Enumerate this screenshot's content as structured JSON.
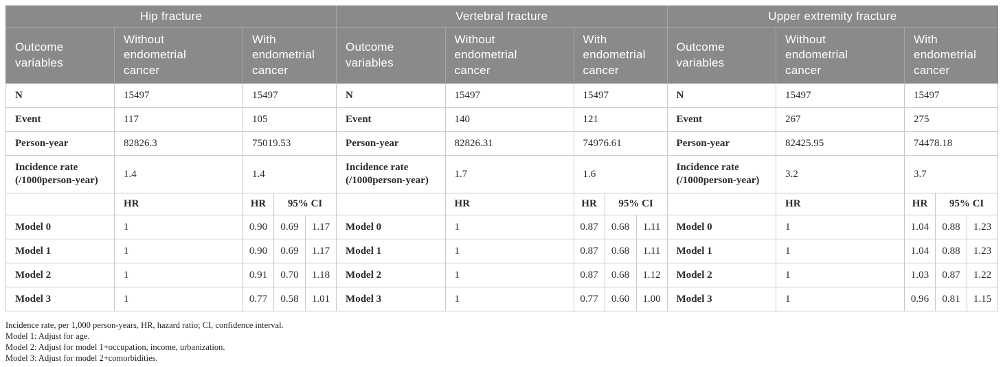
{
  "table": {
    "sections": [
      {
        "title": "Hip fracture",
        "columns": {
          "outcome": "Outcome variables",
          "without": "Without endometrial cancer",
          "with": "With endometrial cancer"
        },
        "stats": [
          {
            "label": "N",
            "without": "15497",
            "with": "15497"
          },
          {
            "label": "Event",
            "without": "117",
            "with": "105"
          },
          {
            "label": "Person-year",
            "without": "82826.3",
            "with": "75019.53"
          },
          {
            "label": "Incidence rate (/1000person-year)",
            "without": "1.4",
            "with": "1.4"
          }
        ],
        "hr_header": {
          "without": "HR",
          "hr": "HR",
          "ci": "95% CI"
        },
        "models": [
          {
            "label": "Model 0",
            "ref": "1",
            "hr": "0.90",
            "ci_low": "0.69",
            "ci_high": "1.17"
          },
          {
            "label": "Model 1",
            "ref": "1",
            "hr": "0.90",
            "ci_low": "0.69",
            "ci_high": "1.17"
          },
          {
            "label": "Model 2",
            "ref": "1",
            "hr": "0.91",
            "ci_low": "0.70",
            "ci_high": "1.18"
          },
          {
            "label": "Model 3",
            "ref": "1",
            "hr": "0.77",
            "ci_low": "0.58",
            "ci_high": "1.01"
          }
        ]
      },
      {
        "title": "Vertebral fracture",
        "columns": {
          "outcome": "Outcome variables",
          "without": "Without endometrial cancer",
          "with": "With endometrial cancer"
        },
        "stats": [
          {
            "label": "N",
            "without": "15497",
            "with": "15497"
          },
          {
            "label": "Event",
            "without": "140",
            "with": "121"
          },
          {
            "label": "Person-year",
            "without": "82826.31",
            "with": "74976.61"
          },
          {
            "label": "Incidence rate (/1000person-year)",
            "without": "1.7",
            "with": "1.6"
          }
        ],
        "hr_header": {
          "without": "HR",
          "hr": "HR",
          "ci": "95% CI"
        },
        "models": [
          {
            "label": "Model 0",
            "ref": "1",
            "hr": "0.87",
            "ci_low": "0.68",
            "ci_high": "1.11"
          },
          {
            "label": "Model 1",
            "ref": "1",
            "hr": "0.87",
            "ci_low": "0.68",
            "ci_high": "1.11"
          },
          {
            "label": "Model 2",
            "ref": "1",
            "hr": "0.87",
            "ci_low": "0.68",
            "ci_high": "1.12"
          },
          {
            "label": "Model 3",
            "ref": "1",
            "hr": "0.77",
            "ci_low": "0.60",
            "ci_high": "1.00"
          }
        ]
      },
      {
        "title": "Upper extremity fracture",
        "columns": {
          "outcome": "Outcome variables",
          "without": "Without endometrial cancer",
          "with": "With endometrial cancer"
        },
        "stats": [
          {
            "label": "N",
            "without": "15497",
            "with": "15497"
          },
          {
            "label": "Event",
            "without": "267",
            "with": "275"
          },
          {
            "label": "Person-year",
            "without": "82425.95",
            "with": "74478.18"
          },
          {
            "label": "Incidence rate (/1000person-year)",
            "without": "3.2",
            "with": "3.7"
          }
        ],
        "hr_header": {
          "without": "HR",
          "hr": "HR",
          "ci": "95% CI"
        },
        "models": [
          {
            "label": "Model 0",
            "ref": "1",
            "hr": "1.04",
            "ci_low": "0.88",
            "ci_high": "1.23"
          },
          {
            "label": "Model 1",
            "ref": "1",
            "hr": "1.04",
            "ci_low": "0.88",
            "ci_high": "1.23"
          },
          {
            "label": "Model 2",
            "ref": "1",
            "hr": "1.03",
            "ci_low": "0.87",
            "ci_high": "1.22"
          },
          {
            "label": "Model 3",
            "ref": "1",
            "hr": "0.96",
            "ci_low": "0.81",
            "ci_high": "1.15"
          }
        ]
      }
    ],
    "footnotes": [
      "Incidence rate, per 1,000 person-years, HR, hazard ratio; CI, confidence interval.",
      "Model 1: Adjust for age.",
      "Model 2: Adjust for model 1+occupation, income, urbanization.",
      "Model 3: Adjust for model 2+comorbidities."
    ]
  },
  "colors": {
    "header_bg": "#8a8a8a",
    "header_divider": "#a6a6a6",
    "body_border": "#c9c9c9",
    "header_text": "#ffffff",
    "body_text": "#2b2b2b"
  }
}
